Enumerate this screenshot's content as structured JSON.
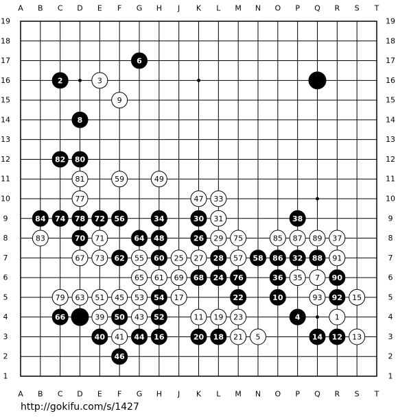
{
  "columns": [
    "A",
    "B",
    "C",
    "D",
    "E",
    "F",
    "G",
    "H",
    "J",
    "K",
    "L",
    "M",
    "N",
    "O",
    "P",
    "Q",
    "R",
    "S",
    "T"
  ],
  "rows": [
    19,
    18,
    17,
    16,
    15,
    14,
    13,
    12,
    11,
    10,
    9,
    8,
    7,
    6,
    5,
    4,
    3,
    2,
    1
  ],
  "stones": [
    {
      "point": "G17",
      "color": "black",
      "label": "6"
    },
    {
      "point": "C16",
      "color": "black",
      "label": "2"
    },
    {
      "point": "Q16",
      "color": "black"
    },
    {
      "point": "D14",
      "color": "black",
      "label": "8"
    },
    {
      "point": "C12",
      "color": "black",
      "label": "82"
    },
    {
      "point": "D12",
      "color": "black",
      "label": "80"
    },
    {
      "point": "B9",
      "color": "black",
      "label": "84"
    },
    {
      "point": "C9",
      "color": "black",
      "label": "74"
    },
    {
      "point": "D9",
      "color": "black",
      "label": "78"
    },
    {
      "point": "E9",
      "color": "black",
      "label": "72"
    },
    {
      "point": "F9",
      "color": "black",
      "label": "56"
    },
    {
      "point": "H9",
      "color": "black",
      "label": "34"
    },
    {
      "point": "K9",
      "color": "black",
      "label": "30"
    },
    {
      "point": "P9",
      "color": "black",
      "label": "38"
    },
    {
      "point": "D8",
      "color": "black",
      "label": "70"
    },
    {
      "point": "G8",
      "color": "black",
      "label": "64"
    },
    {
      "point": "H8",
      "color": "black",
      "label": "48"
    },
    {
      "point": "K8",
      "color": "black",
      "label": "26"
    },
    {
      "point": "F7",
      "color": "black",
      "label": "62"
    },
    {
      "point": "H7",
      "color": "black",
      "label": "60"
    },
    {
      "point": "L7",
      "color": "black",
      "label": "28"
    },
    {
      "point": "N7",
      "color": "black",
      "label": "58"
    },
    {
      "point": "O7",
      "color": "black",
      "label": "86"
    },
    {
      "point": "P7",
      "color": "black",
      "label": "32"
    },
    {
      "point": "Q7",
      "color": "black",
      "label": "88"
    },
    {
      "point": "K6",
      "color": "black",
      "label": "68"
    },
    {
      "point": "L6",
      "color": "black",
      "label": "24"
    },
    {
      "point": "M6",
      "color": "black",
      "label": "76"
    },
    {
      "point": "O6",
      "color": "black",
      "label": "36"
    },
    {
      "point": "R6",
      "color": "black",
      "label": "90"
    },
    {
      "point": "H5",
      "color": "black",
      "label": "54"
    },
    {
      "point": "M5",
      "color": "black",
      "label": "22"
    },
    {
      "point": "O5",
      "color": "black",
      "label": "10"
    },
    {
      "point": "R5",
      "color": "black",
      "label": "92"
    },
    {
      "point": "C4",
      "color": "black",
      "label": "66"
    },
    {
      "point": "D4",
      "color": "black"
    },
    {
      "point": "F4",
      "color": "black",
      "label": "50"
    },
    {
      "point": "H4",
      "color": "black",
      "label": "52"
    },
    {
      "point": "P4",
      "color": "black",
      "label": "4"
    },
    {
      "point": "E3",
      "color": "black",
      "label": "40"
    },
    {
      "point": "G3",
      "color": "black",
      "label": "44"
    },
    {
      "point": "H3",
      "color": "black",
      "label": "16"
    },
    {
      "point": "K3",
      "color": "black",
      "label": "20"
    },
    {
      "point": "L3",
      "color": "black",
      "label": "18"
    },
    {
      "point": "Q3",
      "color": "black",
      "label": "14"
    },
    {
      "point": "R3",
      "color": "black",
      "label": "12"
    },
    {
      "point": "F2",
      "color": "black",
      "label": "46"
    },
    {
      "point": "E16",
      "color": "white",
      "label": "3"
    },
    {
      "point": "F15",
      "color": "white",
      "label": "9"
    },
    {
      "point": "D11",
      "color": "white",
      "label": "81"
    },
    {
      "point": "F11",
      "color": "white",
      "label": "59"
    },
    {
      "point": "H11",
      "color": "white",
      "label": "49"
    },
    {
      "point": "D10",
      "color": "white",
      "label": "77"
    },
    {
      "point": "K10",
      "color": "white",
      "label": "47"
    },
    {
      "point": "L10",
      "color": "white",
      "label": "33"
    },
    {
      "point": "L9",
      "color": "white",
      "label": "31"
    },
    {
      "point": "B8",
      "color": "white",
      "label": "83"
    },
    {
      "point": "E8",
      "color": "white",
      "label": "71"
    },
    {
      "point": "L8",
      "color": "white",
      "label": "29"
    },
    {
      "point": "M8",
      "color": "white",
      "label": "75"
    },
    {
      "point": "O8",
      "color": "white",
      "label": "85"
    },
    {
      "point": "P8",
      "color": "white",
      "label": "87"
    },
    {
      "point": "Q8",
      "color": "white",
      "label": "89"
    },
    {
      "point": "R8",
      "color": "white",
      "label": "37"
    },
    {
      "point": "D7",
      "color": "white",
      "label": "67"
    },
    {
      "point": "E7",
      "color": "white",
      "label": "73"
    },
    {
      "point": "G7",
      "color": "white",
      "label": "55"
    },
    {
      "point": "J7",
      "color": "white",
      "label": "25"
    },
    {
      "point": "K7",
      "color": "white",
      "label": "27"
    },
    {
      "point": "M7",
      "color": "white",
      "label": "57"
    },
    {
      "point": "R7",
      "color": "white",
      "label": "91"
    },
    {
      "point": "G6",
      "color": "white",
      "label": "65"
    },
    {
      "point": "H6",
      "color": "white",
      "label": "61"
    },
    {
      "point": "J6",
      "color": "white",
      "label": "69"
    },
    {
      "point": "P6",
      "color": "white",
      "label": "35"
    },
    {
      "point": "Q6",
      "color": "white",
      "label": "7"
    },
    {
      "point": "C5",
      "color": "white",
      "label": "79"
    },
    {
      "point": "D5",
      "color": "white",
      "label": "63"
    },
    {
      "point": "E5",
      "color": "white",
      "label": "51"
    },
    {
      "point": "F5",
      "color": "white",
      "label": "45"
    },
    {
      "point": "G5",
      "color": "white",
      "label": "53"
    },
    {
      "point": "J5",
      "color": "white",
      "label": "17"
    },
    {
      "point": "Q5",
      "color": "white",
      "label": "93"
    },
    {
      "point": "S5",
      "color": "white",
      "label": "15"
    },
    {
      "point": "E4",
      "color": "white",
      "label": "39"
    },
    {
      "point": "G4",
      "color": "white",
      "label": "43"
    },
    {
      "point": "K4",
      "color": "white",
      "label": "11"
    },
    {
      "point": "L4",
      "color": "white",
      "label": "19"
    },
    {
      "point": "M4",
      "color": "white",
      "label": "23"
    },
    {
      "point": "R4",
      "color": "white",
      "label": "1"
    },
    {
      "point": "F3",
      "color": "white",
      "label": "41"
    },
    {
      "point": "M3",
      "color": "white",
      "label": "21"
    },
    {
      "point": "N3",
      "color": "white",
      "label": "5"
    },
    {
      "point": "S3",
      "color": "white",
      "label": "13"
    }
  ],
  "url": "http://gokifu.com/s/1427"
}
